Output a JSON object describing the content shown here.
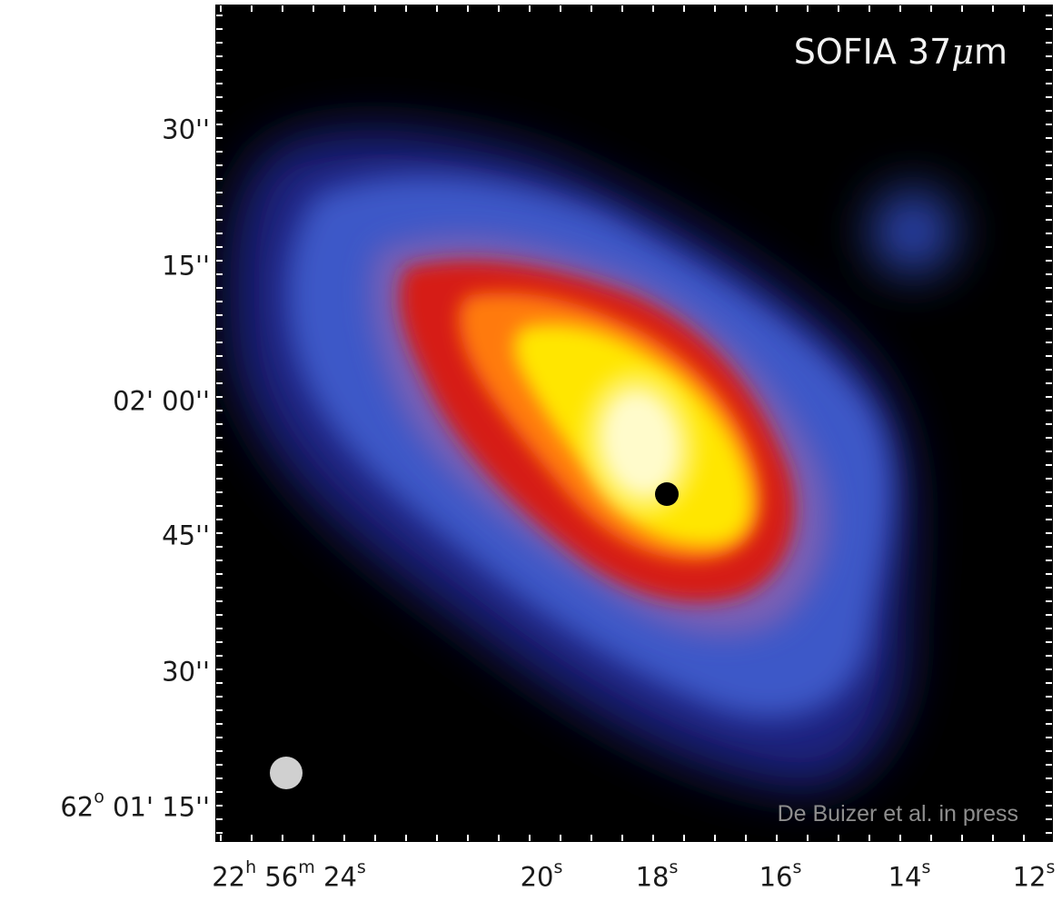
{
  "figure": {
    "title_prefix": "SOFIA 37",
    "title_mu": "μ",
    "title_suffix": "m",
    "credit": "De Buizer et al. in press",
    "dec_labels": [
      {
        "text": "30''"
      },
      {
        "text": "15''"
      },
      {
        "text": "02' 00''"
      },
      {
        "text": "45''"
      },
      {
        "text": "30''"
      },
      {
        "text": "62º 01' 15''",
        "parts": [
          "62",
          "o",
          " 01' 15''"
        ]
      }
    ],
    "ra_labels": [
      {
        "parts": [
          "22",
          "h",
          " 56",
          "m",
          " 24",
          "s"
        ]
      },
      {
        "parts": [
          "20",
          "s"
        ]
      },
      {
        "parts": [
          "18",
          "s"
        ]
      },
      {
        "parts": [
          "16",
          "s"
        ]
      },
      {
        "parts": [
          "14",
          "s"
        ]
      },
      {
        "parts": [
          "12",
          "s"
        ]
      }
    ],
    "colormap": [
      "#000000",
      "#1a1f8a",
      "#3b56c4",
      "#7a62b4",
      "#d01818",
      "#ff3a10",
      "#ffb000",
      "#ffee00",
      "#ffffff"
    ],
    "beam_marker_color": "#d0d0d0",
    "source_marker_color": "#000000"
  }
}
